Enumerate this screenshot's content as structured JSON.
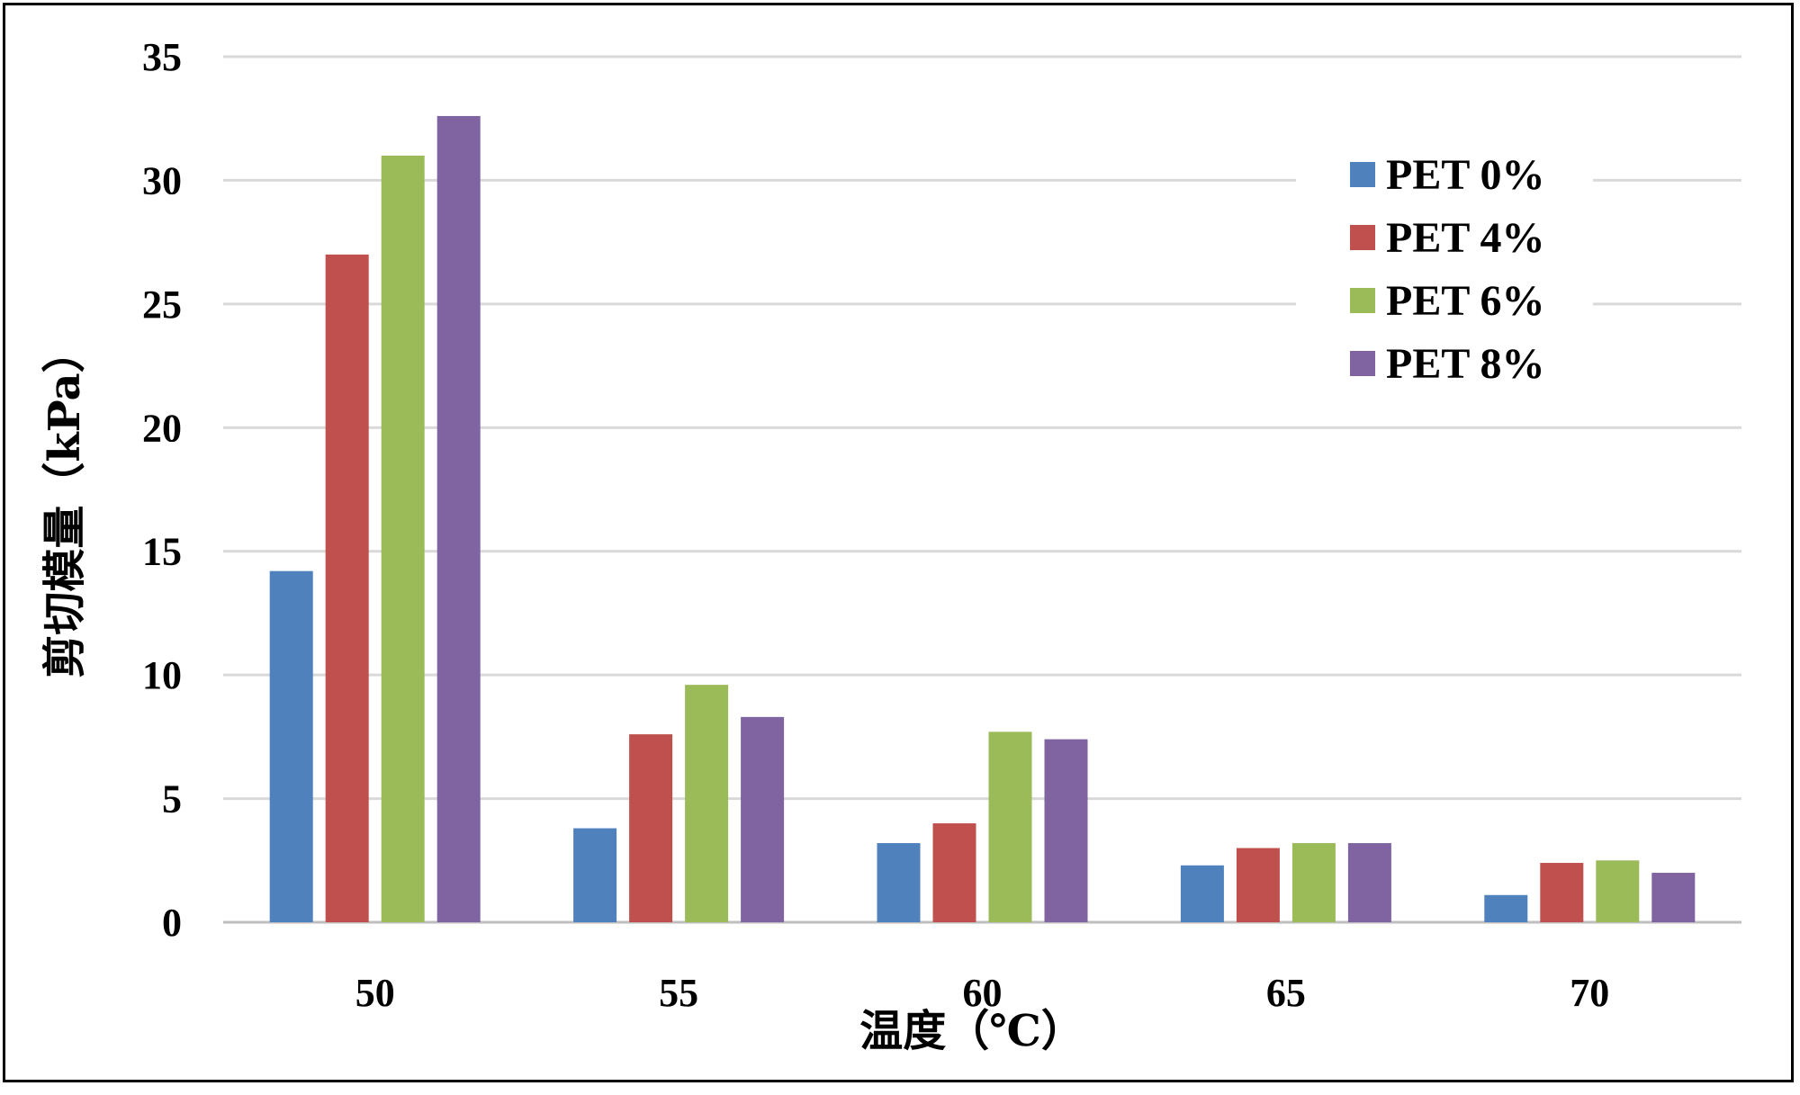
{
  "chart_data": {
    "type": "bar",
    "title": "",
    "xlabel": "温度（℃）",
    "ylabel": "剪切模量（kPa）",
    "categories": [
      "50",
      "55",
      "60",
      "65",
      "70"
    ],
    "series": [
      {
        "name": "PET 0%",
        "color": "#4f81bd",
        "values": [
          14.2,
          3.8,
          3.2,
          2.3,
          1.1
        ]
      },
      {
        "name": "PET 4%",
        "color": "#c0504d",
        "values": [
          27.0,
          7.6,
          4.0,
          3.0,
          2.4
        ]
      },
      {
        "name": "PET 6%",
        "color": "#9bbb59",
        "values": [
          31.0,
          9.6,
          7.7,
          3.2,
          2.5
        ]
      },
      {
        "name": "PET 8%",
        "color": "#8064a2",
        "values": [
          32.6,
          8.3,
          7.4,
          3.2,
          2.0
        ]
      }
    ],
    "ylim": [
      0,
      35
    ],
    "yticks": [
      "0",
      "5",
      "10",
      "15",
      "20",
      "25",
      "30",
      "35"
    ],
    "grid": true,
    "legend_position": "top-right"
  }
}
